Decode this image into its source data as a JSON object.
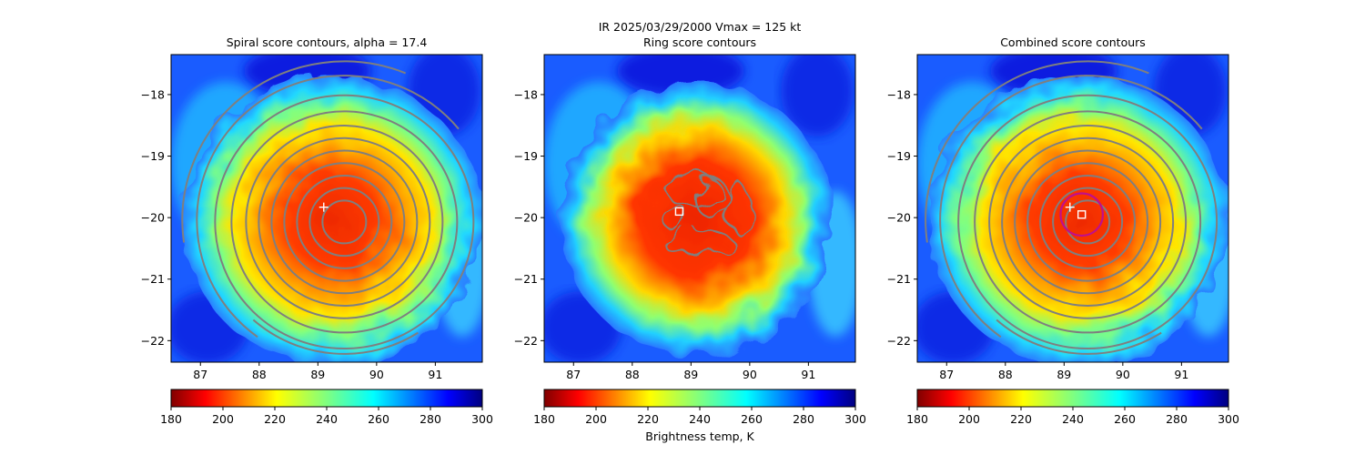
{
  "figure": {
    "suptitle_line1": "IR  2025/03/29/2000    Vmax = 125 kt",
    "colorbar_label": "Brightness temp, K"
  },
  "colors": {
    "contour": "#7f7f7f",
    "center_marker": "#ffffff",
    "ring_circle": "#c0108a",
    "colormap": "jet_reversed"
  },
  "chart_data": [
    {
      "type": "heatmap",
      "title": "Spiral score contours, alpha = 17.4",
      "xlim": [
        86.5,
        91.8
      ],
      "ylim": [
        -22.35,
        -17.35
      ],
      "x_ticks": [
        87,
        88,
        89,
        90,
        91
      ],
      "y_ticks": [
        -18,
        -19,
        -20,
        -21,
        -22
      ],
      "colorbar": {
        "range": [
          180,
          300
        ],
        "ticks": [
          180,
          200,
          220,
          240,
          260,
          280,
          300
        ]
      },
      "overlay": "spiral contours",
      "markers": [
        {
          "symbol": "plus",
          "x": 89.1,
          "y": -19.83
        }
      ]
    },
    {
      "type": "heatmap",
      "title": "Ring score contours",
      "xlim": [
        86.5,
        91.8
      ],
      "ylim": [
        -22.35,
        -17.35
      ],
      "x_ticks": [
        87,
        88,
        89,
        90,
        91
      ],
      "y_ticks": [
        -18,
        -19,
        -20,
        -21,
        -22
      ],
      "colorbar": {
        "range": [
          180,
          300
        ],
        "ticks": [
          180,
          200,
          220,
          240,
          260,
          280,
          300
        ]
      },
      "overlay": "ring contours",
      "markers": [
        {
          "symbol": "square",
          "x": 88.8,
          "y": -19.9
        }
      ]
    },
    {
      "type": "heatmap",
      "title": "Combined score contours",
      "xlim": [
        86.5,
        91.8
      ],
      "ylim": [
        -22.35,
        -17.35
      ],
      "x_ticks": [
        87,
        88,
        89,
        90,
        91
      ],
      "y_ticks": [
        -18,
        -19,
        -20,
        -21,
        -22
      ],
      "colorbar": {
        "range": [
          180,
          300
        ],
        "ticks": [
          180,
          200,
          220,
          240,
          260,
          280,
          300
        ]
      },
      "overlay": "combined contours",
      "markers": [
        {
          "symbol": "plus",
          "x": 89.1,
          "y": -19.83
        },
        {
          "symbol": "square",
          "x": 89.3,
          "y": -19.95
        },
        {
          "symbol": "circle",
          "x": 89.3,
          "y": -19.95,
          "r_deg": 0.36
        }
      ]
    }
  ]
}
